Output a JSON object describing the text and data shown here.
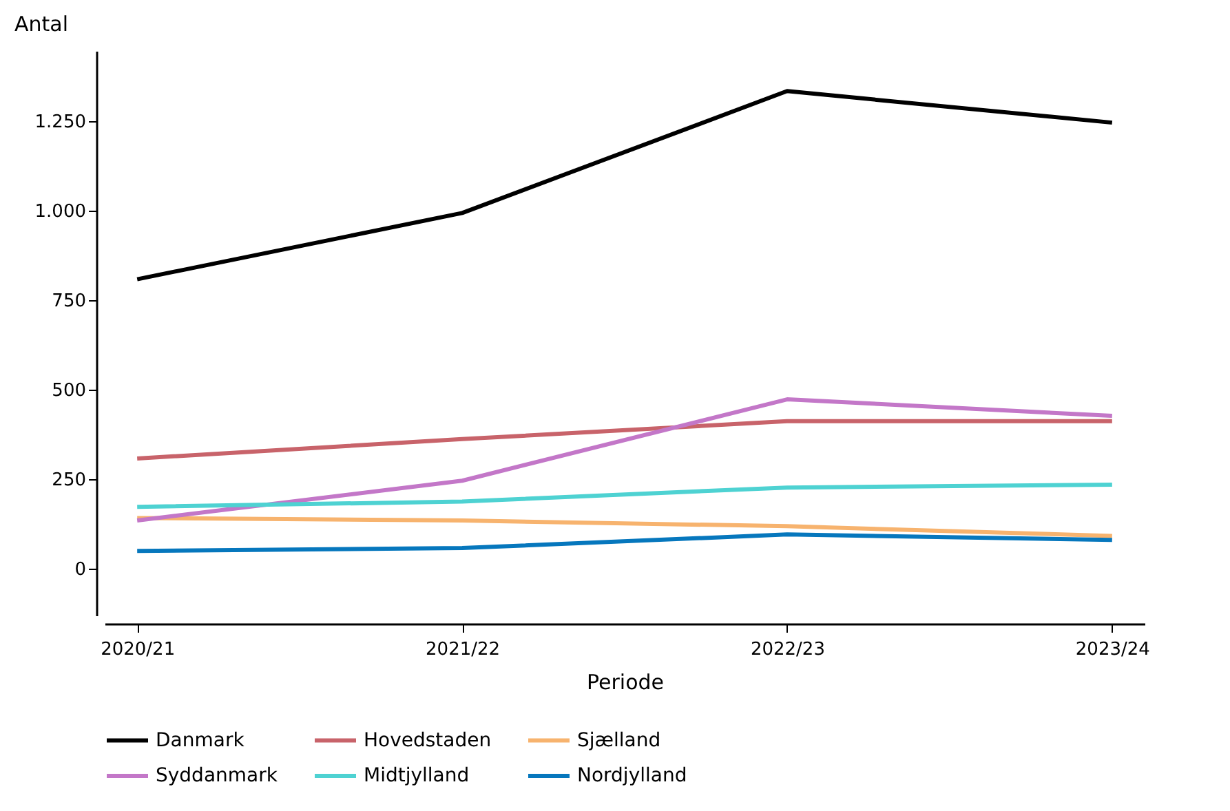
{
  "chart_data": {
    "type": "line",
    "xlabel": "Periode",
    "ylabel": "Antal",
    "categories": [
      "2020/21",
      "2021/22",
      "2022/23",
      "2023/24"
    ],
    "ylim": [
      -130,
      1445
    ],
    "yticks": [
      {
        "value": 0,
        "label": "0"
      },
      {
        "value": 250,
        "label": "250"
      },
      {
        "value": 500,
        "label": "500"
      },
      {
        "value": 750,
        "label": "750"
      },
      {
        "value": 1000,
        "label": "1.000"
      },
      {
        "value": 1250,
        "label": "1.250"
      }
    ],
    "grid": false,
    "legend": "bottom",
    "marker": "none",
    "line_style": "solid",
    "series": [
      {
        "name": "Danmark",
        "color": "#000000",
        "values": [
          808,
          993,
          1333,
          1245
        ]
      },
      {
        "name": "Hovedstaden",
        "color": "#c8636a",
        "values": [
          308,
          362,
          412,
          412
        ]
      },
      {
        "name": "Sjælland",
        "color": "#f7b36e",
        "values": [
          142,
          135,
          119,
          92
        ]
      },
      {
        "name": "Syddanmark",
        "color": "#c377c8",
        "values": [
          135,
          246,
          473,
          427
        ]
      },
      {
        "name": "Midtjylland",
        "color": "#4ed2d2",
        "values": [
          173,
          188,
          227,
          235
        ]
      },
      {
        "name": "Nordjylland",
        "color": "#0677bd",
        "values": [
          50,
          58,
          96,
          81
        ]
      }
    ]
  }
}
